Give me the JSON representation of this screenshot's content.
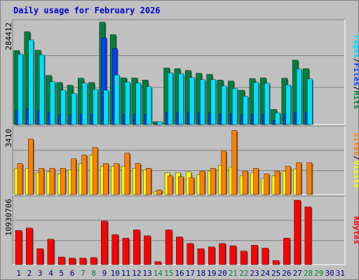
{
  "title": "Daily usage for February 2026",
  "colors": {
    "hits": "#008040",
    "files": "#0040ff",
    "pages": "#00e0ff",
    "visits": "#ffff00",
    "sites": "#ff8000",
    "kbytes": "#ff0000",
    "weekday_label": "#000080",
    "weekend_label": "#008040",
    "background": "#c0c0c0"
  },
  "chart_data": [
    {
      "type": "bar",
      "panel": "top",
      "y_tick_label": "284412",
      "right_label": {
        "parts": [
          "Pages",
          "/",
          "Files",
          "/",
          "Hits"
        ]
      },
      "x": [
        "1",
        "2",
        "3",
        "4",
        "5",
        "6",
        "7",
        "8",
        "9",
        "10",
        "11",
        "12",
        "13",
        "14",
        "15",
        "16",
        "17",
        "18",
        "19",
        "20",
        "21",
        "22",
        "23",
        "24",
        "25",
        "26",
        "27",
        "28",
        "29",
        "30",
        "31"
      ],
      "ylim": [
        0,
        284412
      ],
      "series": [
        {
          "name": "Hits",
          "values": [
            209000,
            262000,
            210000,
            139000,
            119000,
            111000,
            131000,
            119000,
            289000,
            254000,
            132000,
            132000,
            126000,
            8000,
            160000,
            158000,
            153000,
            145000,
            142000,
            126000,
            123000,
            97000,
            130000,
            132000,
            43000,
            131000,
            182000,
            158000,
            0,
            0,
            0
          ]
        },
        {
          "name": "Files",
          "values": [
            40000,
            45000,
            40000,
            35000,
            30000,
            28000,
            30000,
            30000,
            245000,
            215000,
            30000,
            30000,
            29000,
            2000,
            35000,
            35000,
            34000,
            33000,
            32000,
            30000,
            30000,
            28000,
            30000,
            30000,
            12000,
            30000,
            35000,
            35000,
            0,
            0,
            0
          ]
        },
        {
          "name": "Pages",
          "values": [
            199000,
            239000,
            197000,
            121000,
            97000,
            88000,
            117000,
            100000,
            97000,
            140000,
            120000,
            117000,
            107000,
            8000,
            146000,
            144000,
            133000,
            127000,
            127000,
            109000,
            102000,
            80000,
            119000,
            117000,
            33000,
            112000,
            157000,
            129000,
            0,
            0,
            0
          ]
        }
      ]
    },
    {
      "type": "bar",
      "panel": "middle",
      "y_tick_label": "3410",
      "right_label": {
        "parts": [
          "Sites",
          "/",
          "Visits"
        ]
      },
      "x": [
        "1",
        "2",
        "3",
        "4",
        "5",
        "6",
        "7",
        "8",
        "9",
        "10",
        "11",
        "12",
        "13",
        "14",
        "15",
        "16",
        "17",
        "18",
        "19",
        "20",
        "21",
        "22",
        "23",
        "24",
        "25",
        "26",
        "27",
        "28",
        "29",
        "30",
        "31"
      ],
      "ylim": [
        0,
        3410
      ],
      "series": [
        {
          "name": "Visits",
          "values": [
            1400,
            1400,
            1150,
            1200,
            1100,
            1300,
            1650,
            2100,
            1500,
            1500,
            1500,
            1400,
            1300,
            150,
            1150,
            1150,
            1200,
            1050,
            1250,
            1550,
            1450,
            1000,
            1150,
            860,
            1000,
            1250,
            1350,
            0,
            0,
            0,
            0
          ]
        },
        {
          "name": "Sites",
          "values": [
            1650,
            2950,
            1400,
            1400,
            1400,
            1900,
            2100,
            2500,
            1650,
            1650,
            2200,
            1650,
            1400,
            250,
            1000,
            950,
            900,
            1250,
            1400,
            2300,
            3400,
            1250,
            1400,
            1100,
            1250,
            1500,
            1700,
            1700,
            0,
            0,
            0
          ]
        }
      ]
    },
    {
      "type": "bar",
      "panel": "bottom",
      "y_tick_label": "10930706",
      "right_label": {
        "parts": [
          "KBytes"
        ]
      },
      "x": [
        "1",
        "2",
        "3",
        "4",
        "5",
        "6",
        "7",
        "8",
        "9",
        "10",
        "11",
        "12",
        "13",
        "14",
        "15",
        "16",
        "17",
        "18",
        "19",
        "20",
        "21",
        "22",
        "23",
        "24",
        "25",
        "26",
        "27",
        "28",
        "29",
        "30",
        "31"
      ],
      "ylim": [
        0,
        10930706
      ],
      "series": [
        {
          "name": "KBytes",
          "values": [
            5800000,
            6200000,
            2700000,
            4300000,
            1300000,
            1100000,
            1100000,
            1200000,
            7400000,
            5100000,
            4500000,
            5900000,
            4900000,
            500000,
            5900000,
            4700000,
            3600000,
            2700000,
            3000000,
            3600000,
            3200000,
            2300000,
            3300000,
            2800000,
            700000,
            4500000,
            10930706,
            9800000,
            0,
            0,
            0
          ]
        }
      ]
    }
  ],
  "x_axis": {
    "labels": [
      "1",
      "2",
      "3",
      "4",
      "5",
      "6",
      "7",
      "8",
      "9",
      "10",
      "11",
      "12",
      "13",
      "14",
      "15",
      "16",
      "17",
      "18",
      "19",
      "20",
      "21",
      "22",
      "23",
      "24",
      "25",
      "26",
      "27",
      "28",
      "29",
      "30",
      "31"
    ],
    "weekend": [
      false,
      false,
      false,
      false,
      false,
      false,
      true,
      true,
      false,
      false,
      false,
      false,
      false,
      true,
      true,
      false,
      false,
      false,
      false,
      false,
      true,
      true,
      false,
      false,
      false,
      false,
      false,
      true,
      true,
      false,
      false
    ]
  }
}
